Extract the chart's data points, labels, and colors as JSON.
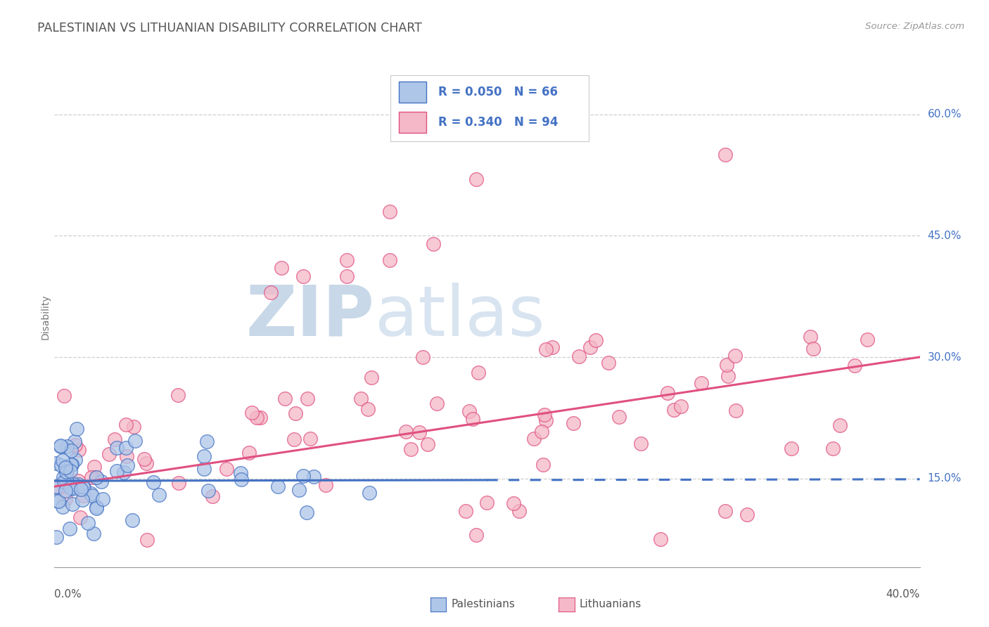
{
  "title": "PALESTINIAN VS LITHUANIAN DISABILITY CORRELATION CHART",
  "source": "Source: ZipAtlas.com",
  "ylabel": "Disability",
  "xmin": 0.0,
  "xmax": 0.4,
  "ymin": 0.04,
  "ymax": 0.66,
  "yticks": [
    0.15,
    0.3,
    0.45,
    0.6
  ],
  "ytick_labels": [
    "15.0%",
    "30.0%",
    "45.0%",
    "60.0%"
  ],
  "palestinian_fill": "#aec6e8",
  "palestinian_edge": "#4472C4",
  "lithuanian_fill": "#f4b8c8",
  "lithuanian_edge": "#E05080",
  "legend_color": "#4472C4",
  "watermark_zip": "ZIP",
  "watermark_atlas": "atlas",
  "background_color": "#ffffff",
  "grid_color": "#bbbbbb",
  "title_color": "#555555",
  "axis_label_color": "#4472C4",
  "bottom_label_color": "#555555"
}
